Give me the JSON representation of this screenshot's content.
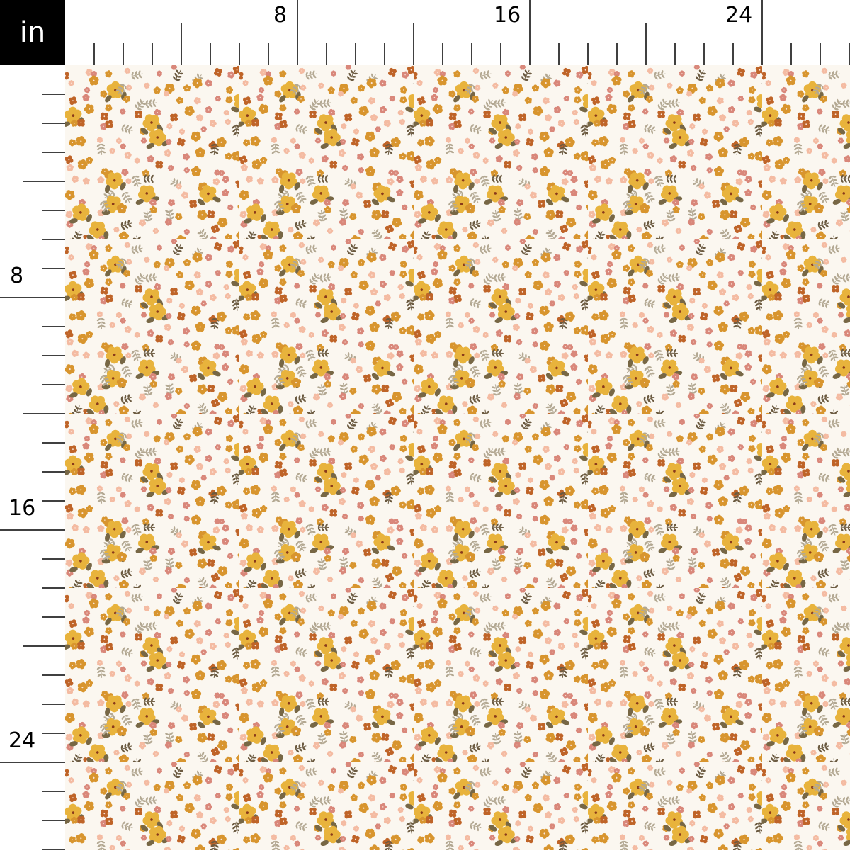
{
  "ruler": {
    "unit": "in",
    "top_labels": [
      "8",
      "16",
      "24"
    ],
    "left_labels": [
      "8",
      "16",
      "24"
    ],
    "major_every_inches": 8,
    "mid_every_inches": 4,
    "length_inches": 27
  },
  "fabric": {
    "pattern": "ditsy floral",
    "colors": {
      "background": "#fbf7f0",
      "yellow": "#e8b33c",
      "mustard": "#d8952e",
      "rust": "#bf6428",
      "rose": "#d9877a",
      "peach": "#f4bba2",
      "olive": "#776745",
      "sage": "#b3a892",
      "stem": "#6b5a40"
    }
  }
}
